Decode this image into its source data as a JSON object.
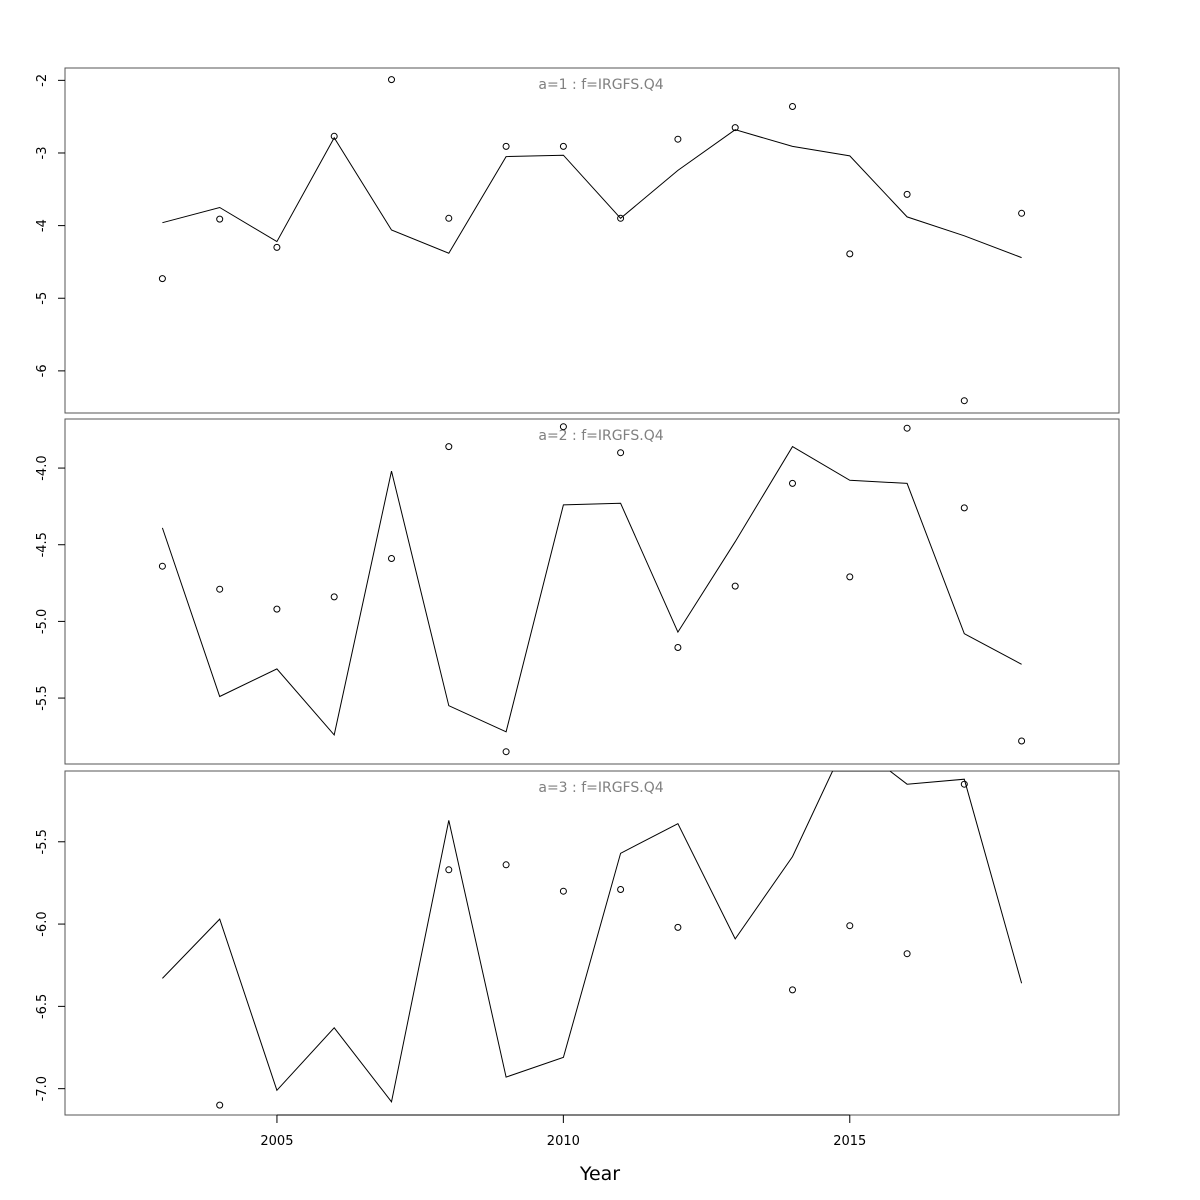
{
  "chart_data": {
    "type": "line",
    "xlabel": "Year",
    "x_ticks": [
      2005,
      2010,
      2015
    ],
    "xlim": [
      2001.3,
      2019.7
    ],
    "panels": [
      {
        "title": "a=1  :  f=IRGFS.Q4",
        "ylim": [
          -6.58,
          -1.83
        ],
        "y_ticks": [
          -2,
          -3,
          -4,
          -5,
          -6
        ],
        "y_tick_labels": [
          "-2",
          "-3",
          "-4",
          "-5",
          "-6"
        ],
        "series": [
          {
            "kind": "line",
            "points": [
              [
                2003,
                -3.96
              ],
              [
                2004,
                -3.75
              ],
              [
                2005,
                -4.22
              ],
              [
                2006,
                -2.79
              ],
              [
                2007,
                -4.06
              ],
              [
                2008,
                -4.38
              ],
              [
                2009,
                -3.05
              ],
              [
                2010,
                -3.03
              ],
              [
                2011,
                -3.9
              ],
              [
                2012,
                -3.24
              ],
              [
                2013,
                -2.68
              ],
              [
                2014,
                -2.91
              ],
              [
                2015,
                -3.04
              ],
              [
                2016,
                -3.88
              ],
              [
                2017,
                -4.14
              ],
              [
                2018,
                -4.44
              ]
            ]
          },
          {
            "kind": "points",
            "points": [
              [
                2003,
                -4.73
              ],
              [
                2004,
                -3.91
              ],
              [
                2005,
                -4.3
              ],
              [
                2006,
                -2.77
              ],
              [
                2007,
                -1.99
              ],
              [
                2008,
                -3.9
              ],
              [
                2009,
                -2.91
              ],
              [
                2010,
                -2.91
              ],
              [
                2011,
                -3.9
              ],
              [
                2012,
                -2.81
              ],
              [
                2013,
                -2.65
              ],
              [
                2014,
                -2.36
              ],
              [
                2015,
                -4.39
              ],
              [
                2016,
                -3.57
              ],
              [
                2017,
                -6.41
              ],
              [
                2018,
                -3.83
              ]
            ]
          }
        ]
      },
      {
        "title": "a=2  :  f=IRGFS.Q4",
        "ylim": [
          -5.93,
          -3.68
        ],
        "y_ticks": [
          -4.0,
          -4.5,
          -5.0,
          -5.5
        ],
        "y_tick_labels": [
          "-4.0",
          "-4.5",
          "-5.0",
          "-5.5"
        ],
        "series": [
          {
            "kind": "line",
            "points": [
              [
                2003,
                -4.39
              ],
              [
                2004,
                -5.49
              ],
              [
                2005,
                -5.31
              ],
              [
                2006,
                -5.74
              ],
              [
                2007,
                -4.02
              ],
              [
                2008,
                -5.55
              ],
              [
                2009,
                -5.72
              ],
              [
                2010,
                -4.24
              ],
              [
                2011,
                -4.23
              ],
              [
                2012,
                -5.07
              ],
              [
                2013,
                -4.48
              ],
              [
                2014,
                -3.86
              ],
              [
                2015,
                -4.08
              ],
              [
                2016,
                -4.1
              ],
              [
                2017,
                -5.08
              ],
              [
                2018,
                -5.28
              ]
            ]
          },
          {
            "kind": "points",
            "points": [
              [
                2003,
                -4.64
              ],
              [
                2004,
                -4.79
              ],
              [
                2005,
                -4.92
              ],
              [
                2006,
                -4.84
              ],
              [
                2007,
                -4.59
              ],
              [
                2008,
                -3.86
              ],
              [
                2009,
                -5.85
              ],
              [
                2010,
                -3.73
              ],
              [
                2011,
                -3.9
              ],
              [
                2012,
                -5.17
              ],
              [
                2013,
                -4.77
              ],
              [
                2014,
                -4.1
              ],
              [
                2015,
                -4.71
              ],
              [
                2016,
                -3.74
              ],
              [
                2017,
                -4.26
              ],
              [
                2018,
                -5.78
              ]
            ]
          }
        ]
      },
      {
        "title": "a=3  :  f=IRGFS.Q4",
        "ylim": [
          -7.16,
          -5.07
        ],
        "y_ticks": [
          -5.5,
          -6.0,
          -6.5,
          -7.0
        ],
        "y_tick_labels": [
          "-5.5",
          "-6.0",
          "-6.5",
          "-7.0"
        ],
        "series": [
          {
            "kind": "line",
            "points": [
              [
                2003,
                -6.33
              ],
              [
                2004,
                -5.97
              ],
              [
                2005,
                -7.01
              ],
              [
                2006,
                -6.63
              ],
              [
                2007,
                -7.08
              ],
              [
                2008,
                -5.37
              ],
              [
                2009,
                -6.93
              ],
              [
                2010,
                -6.81
              ],
              [
                2011,
                -5.57
              ],
              [
                2012,
                -5.39
              ],
              [
                2013,
                -6.09
              ],
              [
                2014,
                -5.59
              ],
              [
                2014.7,
                -5.07
              ],
              [
                2015.7,
                -5.07
              ],
              [
                2016,
                -5.15
              ],
              [
                2017,
                -5.12
              ],
              [
                2018,
                -6.36
              ]
            ]
          },
          {
            "kind": "points",
            "points": [
              [
                2004,
                -7.1
              ],
              [
                2008,
                -5.67
              ],
              [
                2009,
                -5.64
              ],
              [
                2010,
                -5.8
              ],
              [
                2011,
                -5.79
              ],
              [
                2012,
                -6.02
              ],
              [
                2015,
                -6.01
              ],
              [
                2016,
                -6.18
              ],
              [
                2014,
                -6.4
              ],
              [
                2017,
                -5.15
              ]
            ]
          }
        ]
      }
    ]
  }
}
